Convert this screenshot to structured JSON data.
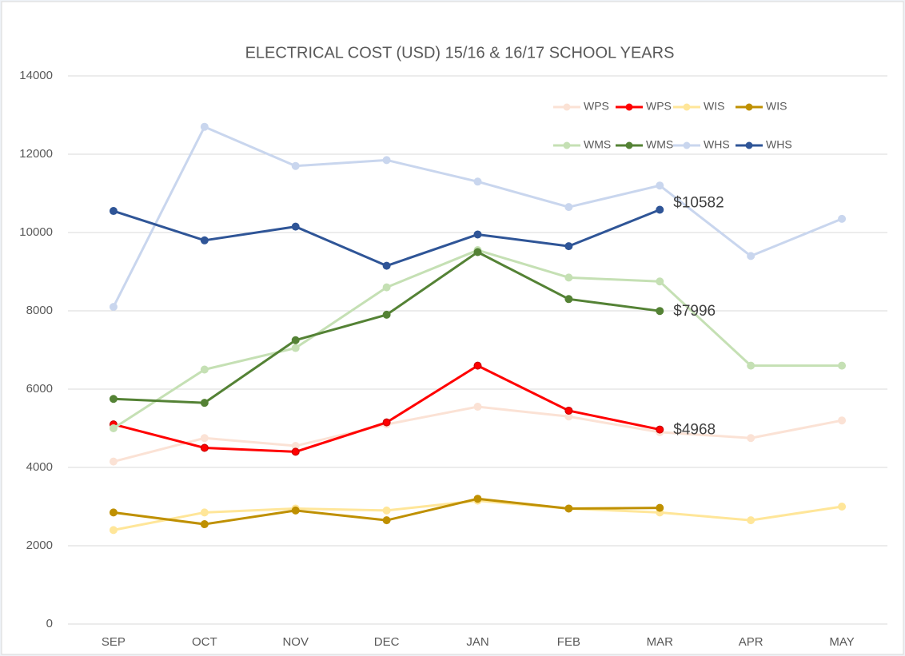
{
  "chart_data": {
    "type": "line",
    "title": "ELECTRICAL COST (USD) 15/16 & 16/17 SCHOOL YEARS",
    "categories": [
      "SEP",
      "OCT",
      "NOV",
      "DEC",
      "JAN",
      "FEB",
      "MAR",
      "APR",
      "MAY"
    ],
    "ylim": [
      0,
      14000
    ],
    "yticks": [
      0,
      2000,
      4000,
      6000,
      8000,
      10000,
      12000,
      14000
    ],
    "grid": true,
    "legend": "top-right",
    "series": [
      {
        "name": "WPS",
        "color": "#fbe2d5",
        "values": [
          4150,
          4750,
          4550,
          5100,
          5550,
          5300,
          4900,
          4750,
          5200
        ]
      },
      {
        "name": "WPS",
        "color": "#ff0000",
        "values": [
          5100,
          4500,
          4400,
          5150,
          6600,
          5450,
          4968,
          null,
          null
        ],
        "value_labels": [
          null,
          null,
          null,
          null,
          null,
          null,
          "$4968",
          null,
          null
        ]
      },
      {
        "name": "WIS",
        "color": "#ffe699",
        "values": [
          2400,
          2850,
          2950,
          2900,
          3150,
          2950,
          2850,
          2650,
          3000
        ]
      },
      {
        "name": "WIS",
        "color": "#bf9000",
        "values": [
          2850,
          2550,
          2900,
          2650,
          3200,
          2950,
          2967,
          null,
          null
        ]
      },
      {
        "name": "WMS",
        "color": "#c5e0b4",
        "values": [
          5000,
          6500,
          7050,
          8600,
          9550,
          8850,
          8750,
          6600,
          6600
        ]
      },
      {
        "name": "WMS",
        "color": "#548235",
        "values": [
          5750,
          5650,
          7250,
          7900,
          9500,
          8300,
          7996,
          null,
          null
        ],
        "value_labels": [
          null,
          null,
          null,
          null,
          null,
          null,
          "$7996",
          null,
          null
        ]
      },
      {
        "name": "WHS",
        "color": "#c9d6ee",
        "values": [
          8100,
          12700,
          11700,
          11850,
          11300,
          10650,
          11200,
          9400,
          10350
        ]
      },
      {
        "name": "WHS",
        "color": "#2f5597",
        "values": [
          10550,
          9800,
          10150,
          9150,
          9950,
          9650,
          10582,
          null,
          null
        ],
        "value_labels": [
          null,
          null,
          null,
          null,
          null,
          null,
          "$10582",
          null,
          null
        ]
      }
    ]
  }
}
